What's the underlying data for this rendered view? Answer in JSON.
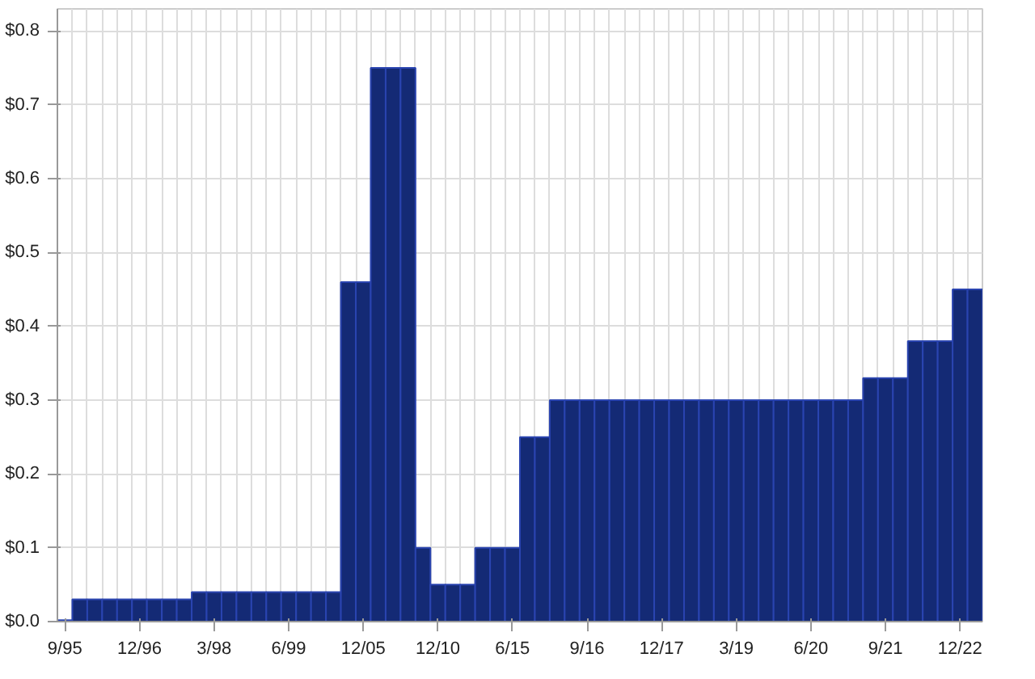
{
  "chart_data": {
    "type": "bar",
    "categories": [
      "9/95",
      null,
      null,
      null,
      null,
      "12/96",
      null,
      null,
      null,
      null,
      "3/98",
      null,
      null,
      null,
      null,
      "6/99",
      null,
      null,
      null,
      null,
      "12/05",
      null,
      null,
      null,
      null,
      "12/10",
      null,
      null,
      null,
      null,
      "6/15",
      null,
      null,
      null,
      null,
      "9/16",
      null,
      null,
      null,
      null,
      "12/17",
      null,
      null,
      null,
      null,
      "3/19",
      null,
      null,
      null,
      null,
      "6/20",
      null,
      null,
      null,
      null,
      "9/21",
      null,
      null,
      null,
      null,
      "12/22",
      null
    ],
    "values": [
      0.002,
      0.03,
      0.03,
      0.03,
      0.03,
      0.03,
      0.03,
      0.03,
      0.03,
      0.04,
      0.04,
      0.04,
      0.04,
      0.04,
      0.04,
      0.04,
      0.04,
      0.04,
      0.04,
      0.46,
      0.46,
      0.75,
      0.75,
      0.75,
      0.1,
      0.05,
      0.05,
      0.05,
      0.1,
      0.1,
      0.1,
      0.25,
      0.25,
      0.3,
      0.3,
      0.3,
      0.3,
      0.3,
      0.3,
      0.3,
      0.3,
      0.3,
      0.3,
      0.3,
      0.3,
      0.3,
      0.3,
      0.3,
      0.3,
      0.3,
      0.3,
      0.3,
      0.3,
      0.3,
      0.33,
      0.33,
      0.33,
      0.38,
      0.38,
      0.38,
      0.45,
      0.45
    ],
    "color": "#142a75",
    "ylim": [
      0,
      0.83
    ],
    "yticks": [
      {
        "value": 0,
        "label": "$0.0"
      },
      {
        "value": 0.1,
        "label": "$0.1"
      },
      {
        "value": 0.2,
        "label": "$0.2"
      },
      {
        "value": 0.3,
        "label": "$0.3"
      },
      {
        "value": 0.4,
        "label": "$0.4"
      },
      {
        "value": 0.5,
        "label": "$0.5"
      },
      {
        "value": 0.6,
        "label": "$0.6"
      },
      {
        "value": 0.7,
        "label": "$0.7"
      },
      {
        "value": 0.8,
        "label": "$0.8"
      }
    ],
    "grid": true
  }
}
